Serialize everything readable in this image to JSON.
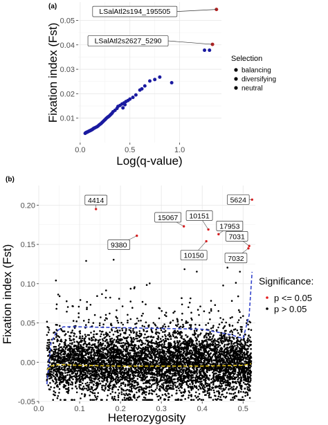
{
  "chart_data": [
    {
      "panel_tag": "(a)",
      "type": "scatter",
      "xlabel": "Log(q-value)",
      "ylabel": "Fixation index (Fst)",
      "xlim": [
        -0.02,
        1.42
      ],
      "ylim": [
        0.0,
        0.0575
      ],
      "xticks": [
        0.0,
        0.5,
        1.0
      ],
      "xtick_labels": [
        "0.0",
        "0.5",
        "1.0"
      ],
      "yticks": [
        0.01,
        0.02,
        0.03,
        0.04,
        0.05
      ],
      "ytick_labels": [
        "0.01",
        "0.02",
        "0.03",
        "0.04",
        "0.05"
      ],
      "grid": true,
      "legend": {
        "title": "Selection",
        "placement": "right",
        "entries": [
          {
            "label": "balancing",
            "color": "#000000"
          },
          {
            "label": "diversifying",
            "color": "#b22222"
          },
          {
            "label": "neutral",
            "color": "#1a1aa0"
          }
        ]
      },
      "series": [
        {
          "name": "diversifying",
          "color": "#b22222",
          "points": [
            [
              1.37,
              0.0545
            ],
            [
              1.33,
              0.0402
            ]
          ]
        },
        {
          "name": "neutral",
          "color": "#1a1aa0",
          "points": [
            [
              0.05,
              0.0038
            ],
            [
              0.055,
              0.004
            ],
            [
              0.06,
              0.0041
            ],
            [
              0.065,
              0.0042
            ],
            [
              0.07,
              0.0043
            ],
            [
              0.075,
              0.0044
            ],
            [
              0.08,
              0.0045
            ],
            [
              0.085,
              0.0046
            ],
            [
              0.09,
              0.0047
            ],
            [
              0.095,
              0.0048
            ],
            [
              0.1,
              0.0049
            ],
            [
              0.105,
              0.005
            ],
            [
              0.11,
              0.0051
            ],
            [
              0.115,
              0.0052
            ],
            [
              0.12,
              0.0053
            ],
            [
              0.125,
              0.0055
            ],
            [
              0.13,
              0.0056
            ],
            [
              0.135,
              0.0058
            ],
            [
              0.14,
              0.0059
            ],
            [
              0.15,
              0.0061
            ],
            [
              0.16,
              0.0063
            ],
            [
              0.17,
              0.0065
            ],
            [
              0.18,
              0.0068
            ],
            [
              0.19,
              0.0072
            ],
            [
              0.2,
              0.0075
            ],
            [
              0.21,
              0.0078
            ],
            [
              0.22,
              0.0082
            ],
            [
              0.23,
              0.0086
            ],
            [
              0.24,
              0.009
            ],
            [
              0.25,
              0.0094
            ],
            [
              0.26,
              0.0098
            ],
            [
              0.27,
              0.0102
            ],
            [
              0.28,
              0.0105
            ],
            [
              0.29,
              0.0108
            ],
            [
              0.3,
              0.0112
            ],
            [
              0.31,
              0.0116
            ],
            [
              0.32,
              0.012
            ],
            [
              0.33,
              0.0126
            ],
            [
              0.35,
              0.0132
            ],
            [
              0.37,
              0.014
            ],
            [
              0.38,
              0.0148
            ],
            [
              0.4,
              0.0152
            ],
            [
              0.42,
              0.0158
            ],
            [
              0.44,
              0.0162
            ],
            [
              0.46,
              0.0168
            ],
            [
              0.48,
              0.0172
            ],
            [
              0.43,
              0.0142
            ],
            [
              0.45,
              0.0155
            ],
            [
              0.5,
              0.0178
            ],
            [
              0.53,
              0.0185
            ],
            [
              0.56,
              0.0195
            ],
            [
              0.6,
              0.0215
            ],
            [
              0.62,
              0.022
            ],
            [
              0.65,
              0.0232
            ],
            [
              0.7,
              0.0252
            ],
            [
              0.75,
              0.0258
            ],
            [
              0.8,
              0.0268
            ],
            [
              0.92,
              0.0245
            ],
            [
              1.25,
              0.0378
            ],
            [
              1.3,
              0.0378
            ]
          ]
        }
      ],
      "annotations": [
        {
          "text": "LSalAtl2s194_195505",
          "x": 1.37,
          "y": 0.0545
        },
        {
          "text": "LSalAtl2s2627_5290",
          "x": 1.33,
          "y": 0.0402
        }
      ]
    },
    {
      "panel_tag": "(b)",
      "type": "scatter",
      "xlabel": "Heterozygosity",
      "ylabel": "Fixation index (Fst)",
      "xlim": [
        0.0,
        0.53
      ],
      "ylim": [
        -0.05,
        0.225
      ],
      "xticks": [
        0.0,
        0.1,
        0.2,
        0.3,
        0.4,
        0.5
      ],
      "xtick_labels": [
        "0.0",
        "0.1",
        "0.2",
        "0.3",
        "0.4",
        "0.5"
      ],
      "yticks": [
        -0.05,
        0.0,
        0.05,
        0.1,
        0.15,
        0.2
      ],
      "ytick_labels": [
        "-0.05",
        "0.00",
        "0.05",
        "0.10",
        "0.15",
        "0.20"
      ],
      "grid": true,
      "legend": {
        "title": "Significance:",
        "placement": "right",
        "entries": [
          {
            "label": "p <= 0.05",
            "color": "#e41a1c"
          },
          {
            "label": "p > 0.05",
            "color": "#000000"
          }
        ]
      },
      "background_cloud": {
        "x_range": [
          0.02,
          0.52
        ],
        "core_range": [
          -0.03,
          0.04
        ],
        "upper_envelope": 0.14,
        "point_count_approx": 6000,
        "color": "#000000"
      },
      "significant_points": [
        {
          "label": "4414",
          "x": 0.14,
          "y": 0.195
        },
        {
          "label": "9380",
          "x": 0.24,
          "y": 0.161
        },
        {
          "label": "15067",
          "x": 0.355,
          "y": 0.173
        },
        {
          "label": "10151",
          "x": 0.415,
          "y": 0.169
        },
        {
          "label": "17953",
          "x": 0.44,
          "y": 0.163
        },
        {
          "label": "10150",
          "x": 0.41,
          "y": 0.154
        },
        {
          "label": "5624",
          "x": 0.522,
          "y": 0.207
        },
        {
          "label": "7031",
          "x": 0.515,
          "y": 0.148
        },
        {
          "label": "7032",
          "x": 0.513,
          "y": 0.145
        }
      ],
      "quantile_lines": [
        {
          "name": "upper",
          "color": "#3344cc",
          "style": "dashed",
          "points": [
            [
              0.02,
              -0.028
            ],
            [
              0.03,
              0.025
            ],
            [
              0.045,
              0.04
            ],
            [
              0.06,
              0.045
            ],
            [
              0.1,
              0.045
            ],
            [
              0.2,
              0.044
            ],
            [
              0.3,
              0.043
            ],
            [
              0.4,
              0.042
            ],
            [
              0.47,
              0.035
            ],
            [
              0.5,
              0.03
            ],
            [
              0.515,
              0.06
            ],
            [
              0.522,
              0.115
            ]
          ]
        },
        {
          "name": "median",
          "color": "#e6c619",
          "style": "dashed",
          "points": [
            [
              0.02,
              -0.01
            ],
            [
              0.03,
              -0.005
            ],
            [
              0.05,
              -0.003
            ],
            [
              0.1,
              -0.004
            ],
            [
              0.2,
              -0.005
            ],
            [
              0.3,
              -0.005
            ],
            [
              0.4,
              -0.005
            ],
            [
              0.5,
              -0.004
            ],
            [
              0.52,
              -0.002
            ]
          ]
        }
      ]
    }
  ]
}
